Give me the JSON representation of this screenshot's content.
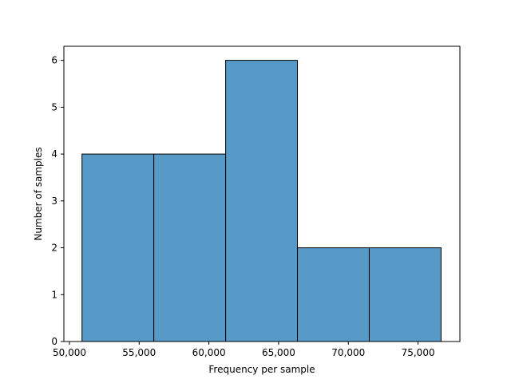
{
  "chart_data": {
    "type": "bar",
    "title": "",
    "xlabel": "Frequency per sample",
    "ylabel": "Number of samples",
    "xlim": [
      49600,
      78000
    ],
    "ylim": [
      0,
      6.3
    ],
    "x_ticks": [
      50000,
      55000,
      60000,
      65000,
      70000,
      75000
    ],
    "x_tick_labels": [
      "50,000",
      "55,000",
      "60,000",
      "65,000",
      "70,000",
      "75,000"
    ],
    "y_ticks": [
      0,
      1,
      2,
      3,
      4,
      5,
      6
    ],
    "y_tick_labels": [
      "0",
      "1",
      "2",
      "3",
      "4",
      "5",
      "6"
    ],
    "bins": [
      {
        "x0": 50900,
        "x1": 56050,
        "count": 4
      },
      {
        "x0": 56050,
        "x1": 61200,
        "count": 4
      },
      {
        "x0": 61200,
        "x1": 66350,
        "count": 6
      },
      {
        "x0": 66350,
        "x1": 71500,
        "count": 2
      },
      {
        "x0": 71500,
        "x1": 76650,
        "count": 2
      }
    ],
    "bar_color": "#5799c7",
    "edge_color": "#000000",
    "grid": false
  }
}
